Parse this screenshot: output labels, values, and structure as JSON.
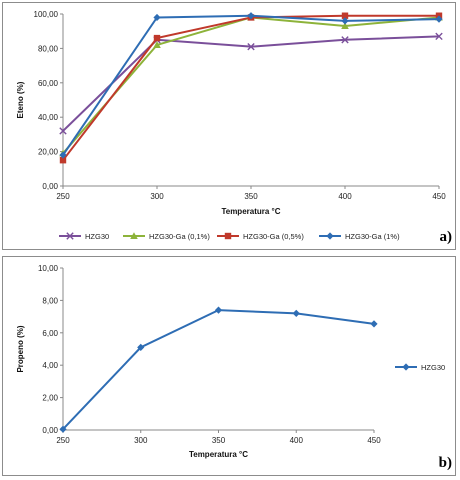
{
  "chart_data": [
    {
      "type": "line",
      "panel_label": "a)",
      "x": [
        250,
        300,
        350,
        400,
        450
      ],
      "xlabel": "Temperatura °C",
      "ylabel": "Eteno (%)",
      "ylim": [
        0,
        100
      ],
      "yticks": [
        "0,00",
        "20,00",
        "40,00",
        "60,00",
        "80,00",
        "100,00"
      ],
      "xticks": [
        "250",
        "300",
        "350",
        "400",
        "450"
      ],
      "legend_position": "bottom",
      "series": [
        {
          "name": "HZG30",
          "values": [
            32,
            85,
            81,
            85,
            87
          ],
          "color": "#7a4f9a",
          "marker": "x"
        },
        {
          "name": "HZG30-Ga (0,1%)",
          "values": [
            19,
            82,
            98,
            93,
            98
          ],
          "color": "#8db33a",
          "marker": "triangle"
        },
        {
          "name": "HZG30-Ga (0,5%)",
          "values": [
            15,
            86,
            98,
            99,
            99
          ],
          "color": "#c0392b",
          "marker": "square"
        },
        {
          "name": "HZG30-Ga (1%)",
          "values": [
            18,
            98,
            99,
            96,
            97
          ],
          "color": "#2e6db4",
          "marker": "diamond"
        }
      ]
    },
    {
      "type": "line",
      "panel_label": "b)",
      "x": [
        250,
        300,
        350,
        400,
        450
      ],
      "xlabel": "Temperatura °C",
      "ylabel": "Propeno (%)",
      "ylim": [
        0,
        10
      ],
      "yticks": [
        "0,00",
        "2,00",
        "4,00",
        "6,00",
        "8,00",
        "10,00"
      ],
      "xticks": [
        "250",
        "300",
        "350",
        "400",
        "450"
      ],
      "legend_position": "right",
      "series": [
        {
          "name": "HZG30",
          "values": [
            0.05,
            5.1,
            7.4,
            7.2,
            6.55
          ],
          "color": "#2e6db4",
          "marker": "diamond"
        }
      ]
    }
  ]
}
